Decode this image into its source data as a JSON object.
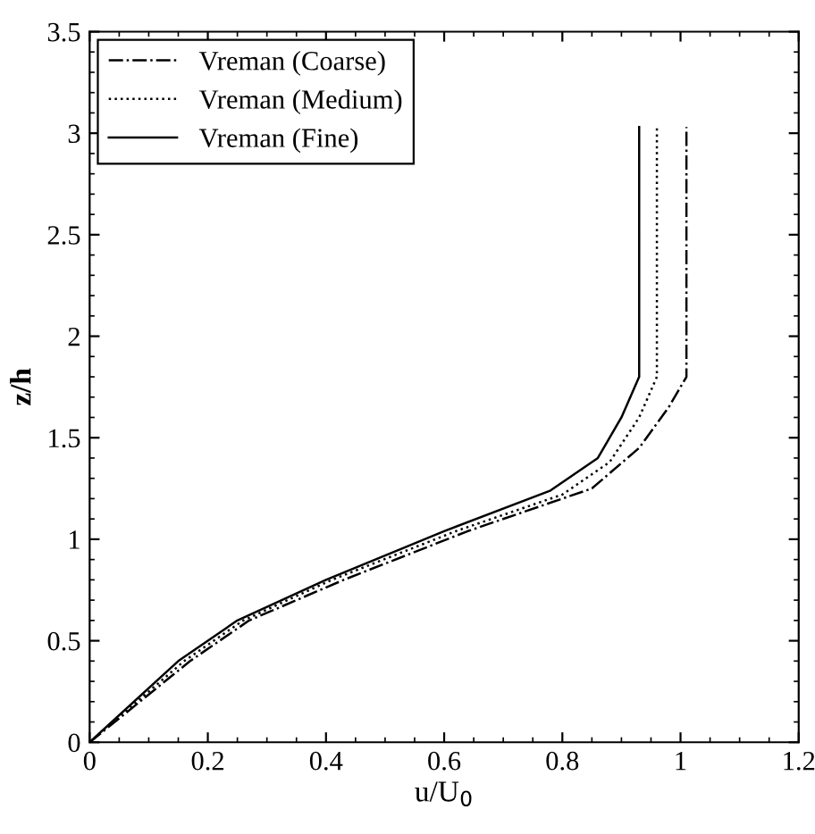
{
  "chart_data": {
    "type": "line",
    "xlabel": "u/U$_{0}$",
    "ylabel": "z/h",
    "xlim": [
      0,
      1.2
    ],
    "ylim": [
      0,
      3.5
    ],
    "xticks": [
      0,
      0.2,
      0.4,
      0.6,
      0.8,
      1,
      1.2
    ],
    "yticks": [
      0,
      0.5,
      1,
      1.5,
      2,
      2.5,
      3,
      3.5
    ],
    "grid": false,
    "legend": "top left",
    "marker": "none",
    "series": [
      {
        "name": "Vreman (Coarse)",
        "color": "#000000",
        "line_style": "dashdot",
        "x": [
          0,
          0.17,
          0.27,
          0.43,
          0.64,
          0.85,
          0.93,
          0.98,
          1.01,
          1.01
        ],
        "values": [
          0,
          0.4,
          0.6,
          0.8,
          1.04,
          1.25,
          1.45,
          1.65,
          1.8,
          3.03
        ]
      },
      {
        "name": "Vreman (Medium)",
        "color": "#000000",
        "line_style": "dotted",
        "x": [
          0,
          0.16,
          0.26,
          0.41,
          0.62,
          0.8,
          0.88,
          0.93,
          0.96,
          0.96
        ],
        "values": [
          0,
          0.4,
          0.6,
          0.8,
          1.04,
          1.22,
          1.38,
          1.6,
          1.8,
          3.03
        ]
      },
      {
        "name": "Vreman (Fine)",
        "color": "#000000",
        "line_style": "solid",
        "x": [
          0,
          0.15,
          0.25,
          0.4,
          0.6,
          0.78,
          0.86,
          0.9,
          0.93,
          0.93
        ],
        "values": [
          0,
          0.4,
          0.6,
          0.8,
          1.04,
          1.24,
          1.4,
          1.6,
          1.8,
          3.03
        ]
      }
    ]
  }
}
